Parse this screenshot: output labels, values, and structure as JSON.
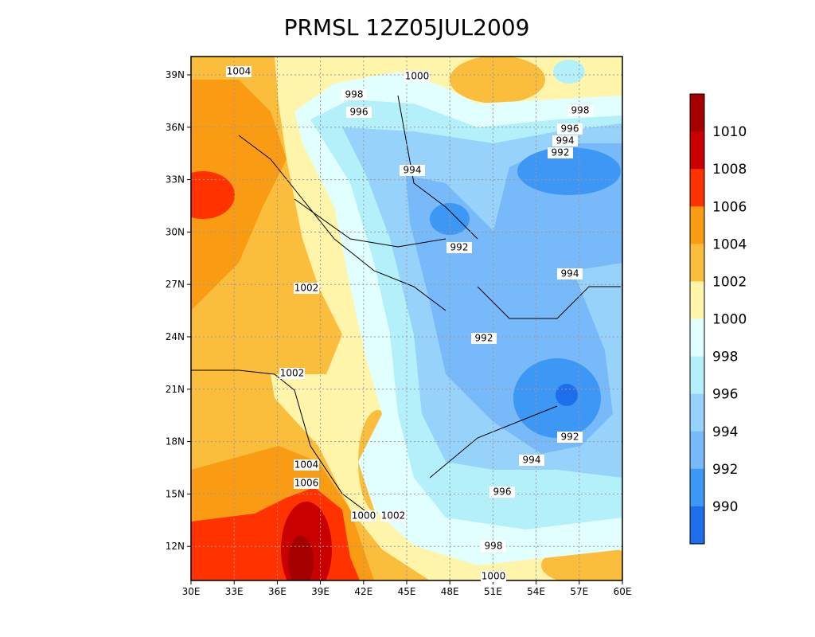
{
  "title": "PRMSL 12Z05JUL2009",
  "lon_ticks": [
    "30E",
    "33E",
    "36E",
    "39E",
    "42E",
    "45E",
    "48E",
    "51E",
    "54E",
    "57E",
    "60E"
  ],
  "lat_ticks": [
    "39N",
    "36N",
    "33N",
    "30N",
    "27N",
    "24N",
    "21N",
    "18N",
    "15N",
    "12N"
  ],
  "colorbar": {
    "labels": [
      "1010",
      "1008",
      "1006",
      "1004",
      "1002",
      "1000",
      "998",
      "996",
      "994",
      "992",
      "990"
    ],
    "colors": [
      "#a50000",
      "#c80000",
      "#ff3200",
      "#fa9b14",
      "#fabe3c",
      "#fff5aa",
      "#e1ffff",
      "#b4f0fa",
      "#96d2fa",
      "#78b9fa",
      "#3c97f5",
      "#1e6eeb"
    ]
  },
  "contour_labels": [
    "1004",
    "1000",
    "998",
    "996",
    "998",
    "996",
    "994",
    "992",
    "994",
    "992",
    "994",
    "1002",
    "992",
    "1002",
    "992",
    "994",
    "1004",
    "1006",
    "996",
    "1000",
    "1002",
    "998",
    "1000"
  ]
}
